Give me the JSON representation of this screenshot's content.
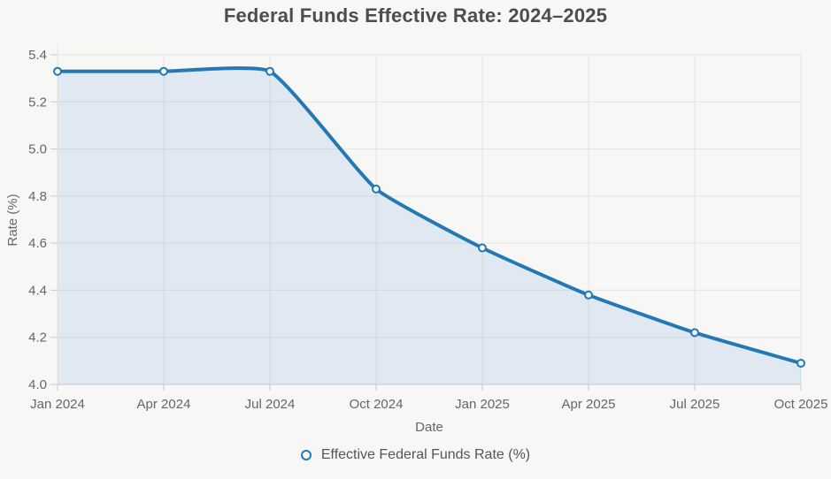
{
  "chart_data": {
    "type": "line",
    "title": "Federal Funds Effective Rate: 2024–2025",
    "xlabel": "Date",
    "ylabel": "Rate (%)",
    "categories": [
      "Jan 2024",
      "Apr 2024",
      "Jul 2024",
      "Oct 2024",
      "Jan 2025",
      "Apr 2025",
      "Jul 2025",
      "Oct 2025"
    ],
    "series": [
      {
        "name": "Effective Federal Funds Rate (%)",
        "values": [
          5.33,
          5.33,
          5.33,
          4.83,
          4.58,
          4.38,
          4.22,
          4.09
        ]
      }
    ],
    "ylim": [
      4.0,
      5.4
    ],
    "yticks": [
      4.0,
      4.2,
      4.4,
      4.6,
      4.8,
      5.0,
      5.2,
      5.4
    ],
    "grid": true,
    "area_fill": true,
    "legend_position": "bottom",
    "colors": {
      "line": "#2478b4",
      "fill": "rgba(31,119,210,0.10)",
      "marker_fill": "#f2f6fa",
      "grid": "#e4e4e3",
      "axis": "#c9c9c8",
      "tick_text": "#666666",
      "title_text": "#4d4d4d",
      "legend_text": "#555555",
      "background": "#f7f7f5"
    }
  }
}
